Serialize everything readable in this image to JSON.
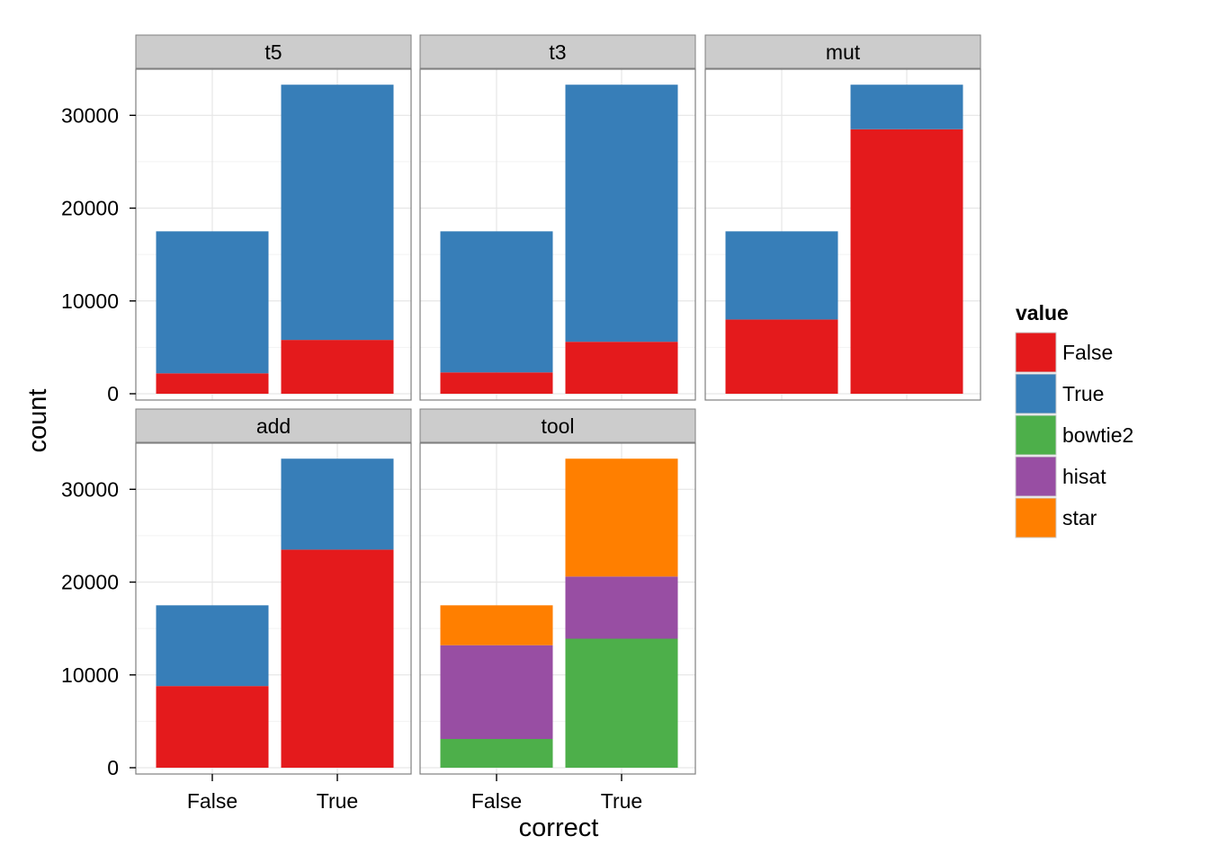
{
  "chart_data": {
    "type": "bar",
    "stacked": true,
    "xlabel": "correct",
    "ylabel": "count",
    "categories": [
      "False",
      "True"
    ],
    "ylim": [
      0,
      34000
    ],
    "yticks": [
      0,
      10000,
      20000,
      30000
    ],
    "ytick_labels": [
      "0",
      "10000",
      "20000",
      "30000"
    ],
    "grid": true,
    "legend": {
      "title": "value",
      "position": "right",
      "entries": [
        {
          "label": "False",
          "color": "#e41a1c"
        },
        {
          "label": "True",
          "color": "#377eb8"
        },
        {
          "label": "bowtie2",
          "color": "#4daf4a"
        },
        {
          "label": "hisat",
          "color": "#984ea3"
        },
        {
          "label": "star",
          "color": "#ff7f00"
        }
      ]
    },
    "facets": [
      {
        "name": "t5",
        "series": [
          {
            "name": "False",
            "values": [
              2200,
              5800
            ]
          },
          {
            "name": "True",
            "values": [
              15300,
              27500
            ]
          }
        ]
      },
      {
        "name": "t3",
        "series": [
          {
            "name": "False",
            "values": [
              2300,
              5600
            ]
          },
          {
            "name": "True",
            "values": [
              15200,
              27700
            ]
          }
        ]
      },
      {
        "name": "mut",
        "series": [
          {
            "name": "False",
            "values": [
              8000,
              28500
            ]
          },
          {
            "name": "True",
            "values": [
              9500,
              4800
            ]
          }
        ]
      },
      {
        "name": "add",
        "series": [
          {
            "name": "False",
            "values": [
              8800,
              23500
            ]
          },
          {
            "name": "True",
            "values": [
              8700,
              9800
            ]
          }
        ]
      },
      {
        "name": "tool",
        "series": [
          {
            "name": "bowtie2",
            "values": [
              3100,
              13900
            ]
          },
          {
            "name": "hisat",
            "values": [
              10100,
              6700
            ]
          },
          {
            "name": "star",
            "values": [
              4300,
              12700
            ]
          }
        ]
      }
    ]
  }
}
